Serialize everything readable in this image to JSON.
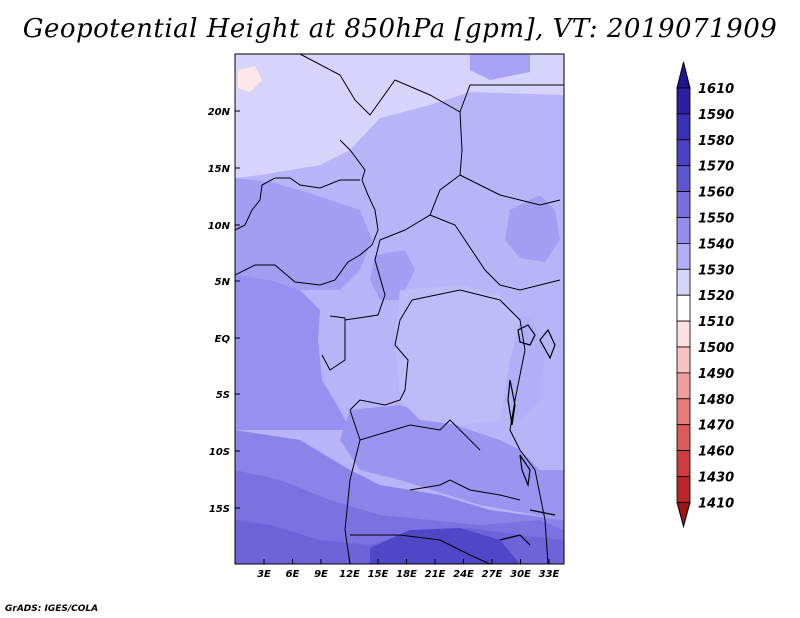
{
  "title": "Geopotential Height at 850hPa [gpm], VT: 2019071909",
  "credit": "GrADS: IGES/COLA",
  "map": {
    "lat_labels": [
      "20N",
      "15N",
      "10N",
      "5N",
      "EQ",
      "5S",
      "10S",
      "15S"
    ],
    "lon_labels": [
      "3E",
      "6E",
      "9E",
      "12E",
      "15E",
      "18E",
      "21E",
      "24E",
      "27E",
      "30E",
      "33E"
    ]
  },
  "colorbar": {
    "levels": [
      "1610",
      "1590",
      "1580",
      "1570",
      "1560",
      "1550",
      "1540",
      "1530",
      "1520",
      "1510",
      "1500",
      "1490",
      "1480",
      "1470",
      "1460",
      "1430",
      "1410"
    ],
    "colors": {
      "gt1610": "#21168f",
      "1590": "#2b20a5",
      "1580": "#3a30b8",
      "1570": "#4a42c6",
      "1560": "#5e56d0",
      "1550": "#7770dc",
      "1540": "#948df0",
      "1530": "#b3aef7",
      "1520": "#d6d4fb",
      "1510": "#ffffff",
      "1500": "#fde0e0",
      "1490": "#f8c2c2",
      "1480": "#f09e9e",
      "1470": "#e67c7c",
      "1460": "#dc5a5a",
      "1430": "#d03c3c",
      "1410": "#bb2525",
      "lt1410": "#9e1515"
    }
  }
}
